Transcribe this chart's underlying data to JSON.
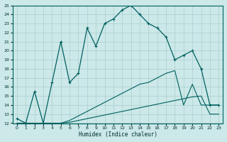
{
  "xlabel": "Humidex (Indice chaleur)",
  "bg_color": "#cce8e8",
  "grid_color": "#aacfcf",
  "line_color": "#006060",
  "xlim": [
    -0.5,
    23.5
  ],
  "ylim": [
    12,
    25
  ],
  "xtick_labels": [
    "0",
    "1",
    "2",
    "3",
    "4",
    "5",
    "6",
    "7",
    "8",
    "9",
    "10",
    "11",
    "12",
    "13",
    "14",
    "15",
    "16",
    "17",
    "18",
    "19",
    "20",
    "21",
    "22",
    "23"
  ],
  "xtick_pos": [
    0,
    1,
    2,
    3,
    4,
    5,
    6,
    7,
    8,
    9,
    10,
    11,
    12,
    13,
    14,
    15,
    16,
    17,
    18,
    19,
    20,
    21,
    22,
    23
  ],
  "ytick_pos": [
    12,
    13,
    14,
    15,
    16,
    17,
    18,
    19,
    20,
    21,
    22,
    23,
    24,
    25
  ],
  "main_x": [
    0,
    1,
    2,
    3,
    4,
    5,
    6,
    7,
    8,
    9,
    10,
    11,
    12,
    13,
    14,
    15,
    16,
    17,
    18,
    19,
    20,
    21,
    22,
    23
  ],
  "main_y": [
    12.5,
    12.0,
    15.5,
    12.0,
    16.5,
    21.0,
    16.5,
    17.5,
    22.5,
    20.5,
    23.0,
    23.5,
    24.5,
    25.0,
    24.0,
    23.0,
    22.5,
    21.5,
    19.0,
    19.5,
    20.0,
    18.0,
    14.0,
    14.0
  ],
  "low1_x": [
    0,
    1,
    2,
    3,
    4,
    5,
    6,
    7,
    8,
    9,
    10,
    11,
    12,
    13,
    14,
    15,
    16,
    17,
    18,
    19,
    20,
    21,
    22,
    23
  ],
  "low1_y": [
    12.0,
    12.0,
    12.0,
    12.0,
    12.0,
    12.0,
    12.1,
    12.3,
    12.5,
    12.7,
    12.9,
    13.1,
    13.3,
    13.5,
    13.7,
    13.9,
    14.1,
    14.3,
    14.5,
    14.7,
    14.9,
    15.0,
    13.0,
    13.0
  ],
  "low2_x": [
    0,
    1,
    2,
    3,
    4,
    5,
    6,
    7,
    8,
    9,
    10,
    11,
    12,
    13,
    14,
    15,
    16,
    17,
    18,
    19,
    20,
    21,
    22,
    23
  ],
  "low2_y": [
    12.0,
    12.0,
    12.0,
    12.0,
    12.0,
    12.0,
    12.3,
    12.8,
    13.3,
    13.8,
    14.3,
    14.8,
    15.3,
    15.8,
    16.3,
    16.5,
    17.0,
    17.5,
    17.8,
    14.0,
    16.3,
    14.0,
    14.0,
    14.0
  ]
}
